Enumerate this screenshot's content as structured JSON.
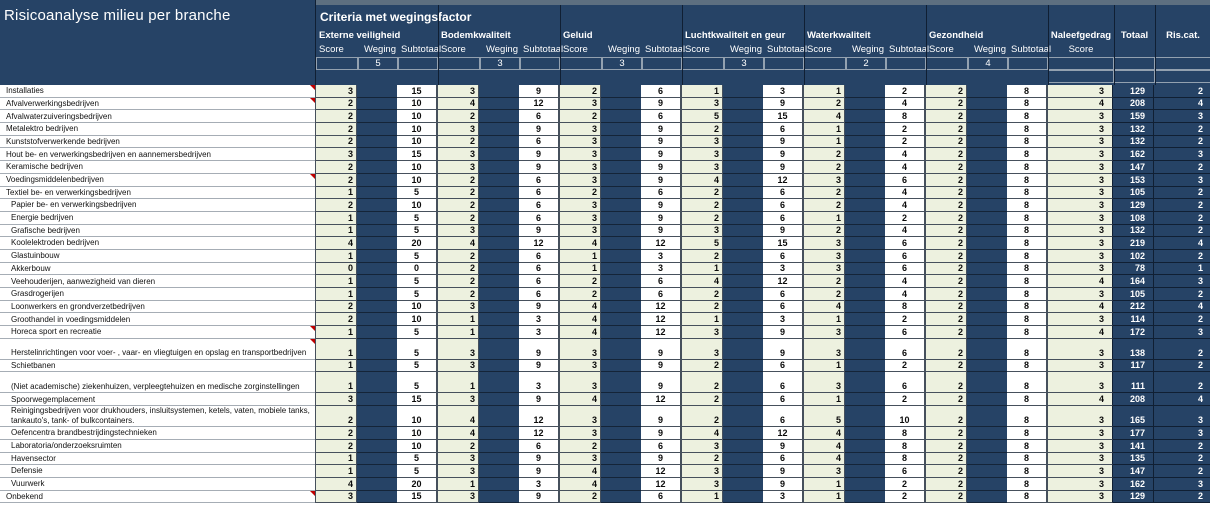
{
  "title": "Risicoanalyse milieu per branche",
  "criteria_header": "Criteria met wegingsfactor",
  "col_headers": {
    "score": "Score",
    "weging": "Weging",
    "subtotaal": "Subtotaal"
  },
  "groups": [
    {
      "label": "Externe veiligheid",
      "weging": 5
    },
    {
      "label": "Bodemkwaliteit",
      "weging": 3
    },
    {
      "label": "Geluid",
      "weging": 3
    },
    {
      "label": "Luchtkwaliteit en geur",
      "weging": 3
    },
    {
      "label": "Waterkwaliteit",
      "weging": 2
    },
    {
      "label": "Gezondheid",
      "weging": 4
    }
  ],
  "naleefgedrag": {
    "label": "Naleefgedrag",
    "sub_label": "Score"
  },
  "totaal_label": "Totaal",
  "riscat_label": "Ris.cat.",
  "rows": [
    {
      "label": "Installaties",
      "comment": true,
      "scores": [
        [
          3,
          15
        ],
        [
          3,
          9
        ],
        [
          2,
          6
        ],
        [
          1,
          3
        ],
        [
          1,
          2
        ],
        [
          2,
          8
        ]
      ],
      "naleef": 3,
      "totaal": 129,
      "riscat": 2
    },
    {
      "label": "Afvalverwerkingsbedrijven",
      "comment": true,
      "scores": [
        [
          2,
          10
        ],
        [
          4,
          12
        ],
        [
          3,
          9
        ],
        [
          3,
          9
        ],
        [
          2,
          4
        ],
        [
          2,
          8
        ]
      ],
      "naleef": 4,
      "totaal": 208,
      "riscat": 4
    },
    {
      "label": "Afvalwaterzuiveringsbedrijven",
      "scores": [
        [
          2,
          10
        ],
        [
          2,
          6
        ],
        [
          2,
          6
        ],
        [
          5,
          15
        ],
        [
          4,
          8
        ],
        [
          2,
          8
        ]
      ],
      "naleef": 3,
      "totaal": 159,
      "riscat": 3
    },
    {
      "label": "Metalektro bedrijven",
      "scores": [
        [
          2,
          10
        ],
        [
          3,
          9
        ],
        [
          3,
          9
        ],
        [
          2,
          6
        ],
        [
          1,
          2
        ],
        [
          2,
          8
        ]
      ],
      "naleef": 3,
      "totaal": 132,
      "riscat": 2
    },
    {
      "label": "Kunststofverwerkende bedrijven",
      "scores": [
        [
          2,
          10
        ],
        [
          2,
          6
        ],
        [
          3,
          9
        ],
        [
          3,
          9
        ],
        [
          1,
          2
        ],
        [
          2,
          8
        ]
      ],
      "naleef": 3,
      "totaal": 132,
      "riscat": 2
    },
    {
      "label": "Hout be- en verwerkingsbedrijven en aannemersbedrijven",
      "scores": [
        [
          3,
          15
        ],
        [
          3,
          9
        ],
        [
          3,
          9
        ],
        [
          3,
          9
        ],
        [
          2,
          4
        ],
        [
          2,
          8
        ]
      ],
      "naleef": 3,
      "totaal": 162,
      "riscat": 3
    },
    {
      "label": "Keramische bedrijven",
      "scores": [
        [
          2,
          10
        ],
        [
          3,
          9
        ],
        [
          3,
          9
        ],
        [
          3,
          9
        ],
        [
          2,
          4
        ],
        [
          2,
          8
        ]
      ],
      "naleef": 3,
      "totaal": 147,
      "riscat": 2
    },
    {
      "label": "Voedingsmiddelenbedrijven",
      "comment": true,
      "scores": [
        [
          2,
          10
        ],
        [
          2,
          6
        ],
        [
          3,
          9
        ],
        [
          4,
          12
        ],
        [
          3,
          6
        ],
        [
          2,
          8
        ]
      ],
      "naleef": 3,
      "totaal": 153,
      "riscat": 3
    },
    {
      "label": "Textiel be- en verwerkingsbedrijven",
      "scores": [
        [
          1,
          5
        ],
        [
          2,
          6
        ],
        [
          2,
          6
        ],
        [
          2,
          6
        ],
        [
          2,
          4
        ],
        [
          2,
          8
        ]
      ],
      "naleef": 3,
      "totaal": 105,
      "riscat": 2
    },
    {
      "label": "Papier be- en verwerkingsbedrijven",
      "indent": true,
      "scores": [
        [
          2,
          10
        ],
        [
          2,
          6
        ],
        [
          3,
          9
        ],
        [
          2,
          6
        ],
        [
          2,
          4
        ],
        [
          2,
          8
        ]
      ],
      "naleef": 3,
      "totaal": 129,
      "riscat": 2
    },
    {
      "label": "Energie bedrijven",
      "indent": true,
      "scores": [
        [
          1,
          5
        ],
        [
          2,
          6
        ],
        [
          3,
          9
        ],
        [
          2,
          6
        ],
        [
          1,
          2
        ],
        [
          2,
          8
        ]
      ],
      "naleef": 3,
      "totaal": 108,
      "riscat": 2
    },
    {
      "label": "Grafische bedrijven",
      "indent": true,
      "scores": [
        [
          1,
          5
        ],
        [
          3,
          9
        ],
        [
          3,
          9
        ],
        [
          3,
          9
        ],
        [
          2,
          4
        ],
        [
          2,
          8
        ]
      ],
      "naleef": 3,
      "totaal": 132,
      "riscat": 2
    },
    {
      "label": "Koolelektroden bedrijven",
      "indent": true,
      "scores": [
        [
          4,
          20
        ],
        [
          4,
          12
        ],
        [
          4,
          12
        ],
        [
          5,
          15
        ],
        [
          3,
          6
        ],
        [
          2,
          8
        ]
      ],
      "naleef": 3,
      "totaal": 219,
      "riscat": 4
    },
    {
      "label": "Glastuinbouw",
      "indent": true,
      "scores": [
        [
          1,
          5
        ],
        [
          2,
          6
        ],
        [
          1,
          3
        ],
        [
          2,
          6
        ],
        [
          3,
          6
        ],
        [
          2,
          8
        ]
      ],
      "naleef": 3,
      "totaal": 102,
      "riscat": 2
    },
    {
      "label": "Akkerbouw",
      "indent": true,
      "scores": [
        [
          0,
          0
        ],
        [
          2,
          6
        ],
        [
          1,
          3
        ],
        [
          1,
          3
        ],
        [
          3,
          6
        ],
        [
          2,
          8
        ]
      ],
      "naleef": 3,
      "totaal": 78,
      "riscat": 1
    },
    {
      "label": "Veehouderijen, aanwezigheid van dieren",
      "indent": true,
      "scores": [
        [
          1,
          5
        ],
        [
          2,
          6
        ],
        [
          2,
          6
        ],
        [
          4,
          12
        ],
        [
          2,
          4
        ],
        [
          2,
          8
        ]
      ],
      "naleef": 4,
      "totaal": 164,
      "riscat": 3
    },
    {
      "label": "Grasdrogerijen",
      "indent": true,
      "scores": [
        [
          1,
          5
        ],
        [
          2,
          6
        ],
        [
          2,
          6
        ],
        [
          2,
          6
        ],
        [
          2,
          4
        ],
        [
          2,
          8
        ]
      ],
      "naleef": 3,
      "totaal": 105,
      "riscat": 2
    },
    {
      "label": "Loonwerkers en grondverzetbedrijven",
      "indent": true,
      "scores": [
        [
          2,
          10
        ],
        [
          3,
          9
        ],
        [
          4,
          12
        ],
        [
          2,
          6
        ],
        [
          4,
          8
        ],
        [
          2,
          8
        ]
      ],
      "naleef": 4,
      "totaal": 212,
      "riscat": 4
    },
    {
      "label": "Groothandel in voedingsmiddelen",
      "indent": true,
      "scores": [
        [
          2,
          10
        ],
        [
          1,
          3
        ],
        [
          4,
          12
        ],
        [
          1,
          3
        ],
        [
          1,
          2
        ],
        [
          2,
          8
        ]
      ],
      "naleef": 3,
      "totaal": 114,
      "riscat": 2
    },
    {
      "label": "Horeca sport en recreatie",
      "indent": true,
      "comment": true,
      "scores": [
        [
          1,
          5
        ],
        [
          1,
          3
        ],
        [
          4,
          12
        ],
        [
          3,
          9
        ],
        [
          3,
          6
        ],
        [
          2,
          8
        ]
      ],
      "naleef": 4,
      "totaal": 172,
      "riscat": 3
    },
    {
      "label": "Herstelinrichtingen voor voer- , vaar- en vliegtuigen en opslag en transportbedrijven",
      "indent": true,
      "tall": true,
      "comment": true,
      "scores": [
        [
          1,
          5
        ],
        [
          3,
          9
        ],
        [
          3,
          9
        ],
        [
          3,
          9
        ],
        [
          3,
          6
        ],
        [
          2,
          8
        ]
      ],
      "naleef": 3,
      "totaal": 138,
      "riscat": 2
    },
    {
      "label": "Schietbanen",
      "indent": true,
      "scores": [
        [
          1,
          5
        ],
        [
          3,
          9
        ],
        [
          3,
          9
        ],
        [
          2,
          6
        ],
        [
          1,
          2
        ],
        [
          2,
          8
        ]
      ],
      "naleef": 3,
      "totaal": 117,
      "riscat": 2
    },
    {
      "label": "(Niet academische) ziekenhuizen, verpleegtehuizen en medische zorginstellingen",
      "indent": true,
      "tall": true,
      "scores": [
        [
          1,
          5
        ],
        [
          1,
          3
        ],
        [
          3,
          9
        ],
        [
          2,
          6
        ],
        [
          3,
          6
        ],
        [
          2,
          8
        ]
      ],
      "naleef": 3,
      "totaal": 111,
      "riscat": 2
    },
    {
      "label": "Spoorwegemplacement",
      "indent": true,
      "scores": [
        [
          3,
          15
        ],
        [
          3,
          9
        ],
        [
          4,
          12
        ],
        [
          2,
          6
        ],
        [
          1,
          2
        ],
        [
          2,
          8
        ]
      ],
      "naleef": 4,
      "totaal": 208,
      "riscat": 4
    },
    {
      "label": "Reinigingsbedrijven voor drukhouders, insluitsystemen, ketels, vaten, mobiele tanks, tankauto's, tank- of bulkcontainers.",
      "indent": true,
      "tall": true,
      "wrap": true,
      "scores": [
        [
          2,
          10
        ],
        [
          4,
          12
        ],
        [
          3,
          9
        ],
        [
          2,
          6
        ],
        [
          5,
          10
        ],
        [
          2,
          8
        ]
      ],
      "naleef": 3,
      "totaal": 165,
      "riscat": 3
    },
    {
      "label": "Oefencentra brandbestrijdingstechnieken",
      "indent": true,
      "scores": [
        [
          2,
          10
        ],
        [
          4,
          12
        ],
        [
          3,
          9
        ],
        [
          4,
          12
        ],
        [
          4,
          8
        ],
        [
          2,
          8
        ]
      ],
      "naleef": 3,
      "totaal": 177,
      "riscat": 3
    },
    {
      "label": "Laboratoria/onderzoeksruimten",
      "indent": true,
      "scores": [
        [
          2,
          10
        ],
        [
          2,
          6
        ],
        [
          2,
          6
        ],
        [
          3,
          9
        ],
        [
          4,
          8
        ],
        [
          2,
          8
        ]
      ],
      "naleef": 3,
      "totaal": 141,
      "riscat": 2
    },
    {
      "label": "Havensector",
      "indent": true,
      "scores": [
        [
          1,
          5
        ],
        [
          3,
          9
        ],
        [
          3,
          9
        ],
        [
          2,
          6
        ],
        [
          4,
          8
        ],
        [
          2,
          8
        ]
      ],
      "naleef": 3,
      "totaal": 135,
      "riscat": 2
    },
    {
      "label": "Defensie",
      "indent": true,
      "scores": [
        [
          1,
          5
        ],
        [
          3,
          9
        ],
        [
          4,
          12
        ],
        [
          3,
          9
        ],
        [
          3,
          6
        ],
        [
          2,
          8
        ]
      ],
      "naleef": 3,
      "totaal": 147,
      "riscat": 2
    },
    {
      "label": "Vuurwerk",
      "indent": true,
      "scores": [
        [
          4,
          20
        ],
        [
          1,
          3
        ],
        [
          4,
          12
        ],
        [
          3,
          9
        ],
        [
          1,
          2
        ],
        [
          2,
          8
        ]
      ],
      "naleef": 3,
      "totaal": 162,
      "riscat": 3
    },
    {
      "label": "Onbekend",
      "comment": true,
      "scores": [
        [
          3,
          15
        ],
        [
          3,
          9
        ],
        [
          2,
          6
        ],
        [
          1,
          3
        ],
        [
          1,
          2
        ],
        [
          2,
          8
        ]
      ],
      "naleef": 3,
      "totaal": 129,
      "riscat": 2
    }
  ],
  "colors": {
    "navy": "#264366",
    "top_band": "#5d6f80",
    "score_cell": "#edf1df",
    "grid_border": "#46505c",
    "red_marker": "#c00000"
  }
}
